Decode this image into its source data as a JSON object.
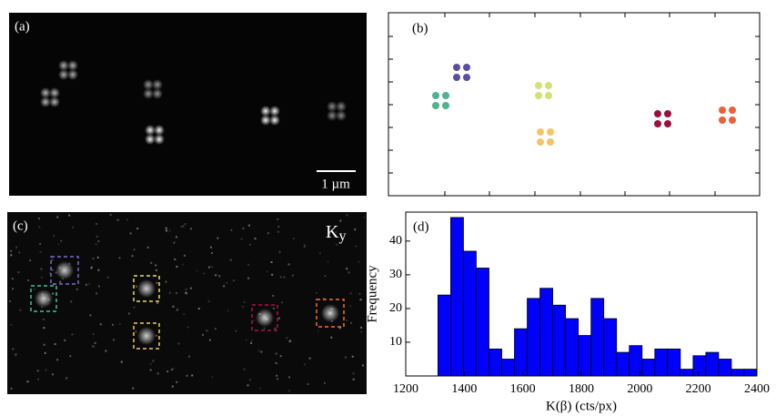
{
  "panels": {
    "a": {
      "label": "(a)",
      "scale_bar": "1 µm"
    },
    "b": {
      "label": "(b)"
    },
    "c": {
      "label": "(c)",
      "channel_label": {
        "main": "K",
        "subscript": "y"
      }
    }
  },
  "chart_data": {
    "type": "histogram",
    "label": "(d)",
    "x_label": "K(β) (cts/px)",
    "y_label": "Frequency",
    "bins": [
      1310,
      1353.6,
      1397.2,
      1440.8,
      1484.4,
      1528,
      1571.6,
      1615.2,
      1658.8,
      1702.4,
      1746,
      1789.6,
      1833.2,
      1876.8,
      1920.4,
      1964,
      2007.6,
      2051.2,
      2094.8,
      2138.4,
      2182,
      2225.6,
      2269.2,
      2312.8,
      2356.4,
      2400
    ],
    "values": [
      24,
      47,
      37,
      32,
      8,
      5,
      14,
      23,
      26,
      21,
      17,
      12,
      23,
      17,
      7,
      9,
      5,
      8,
      8,
      2,
      6,
      7,
      5,
      2,
      2
    ],
    "color": "#0000ff",
    "xlim": [
      1200,
      2400
    ],
    "xticks": [
      1200,
      1400,
      1600,
      1800,
      2000,
      2200,
      2400
    ],
    "ylim": [
      0,
      48.6
    ],
    "yticks": [
      10,
      20,
      30,
      40
    ]
  }
}
